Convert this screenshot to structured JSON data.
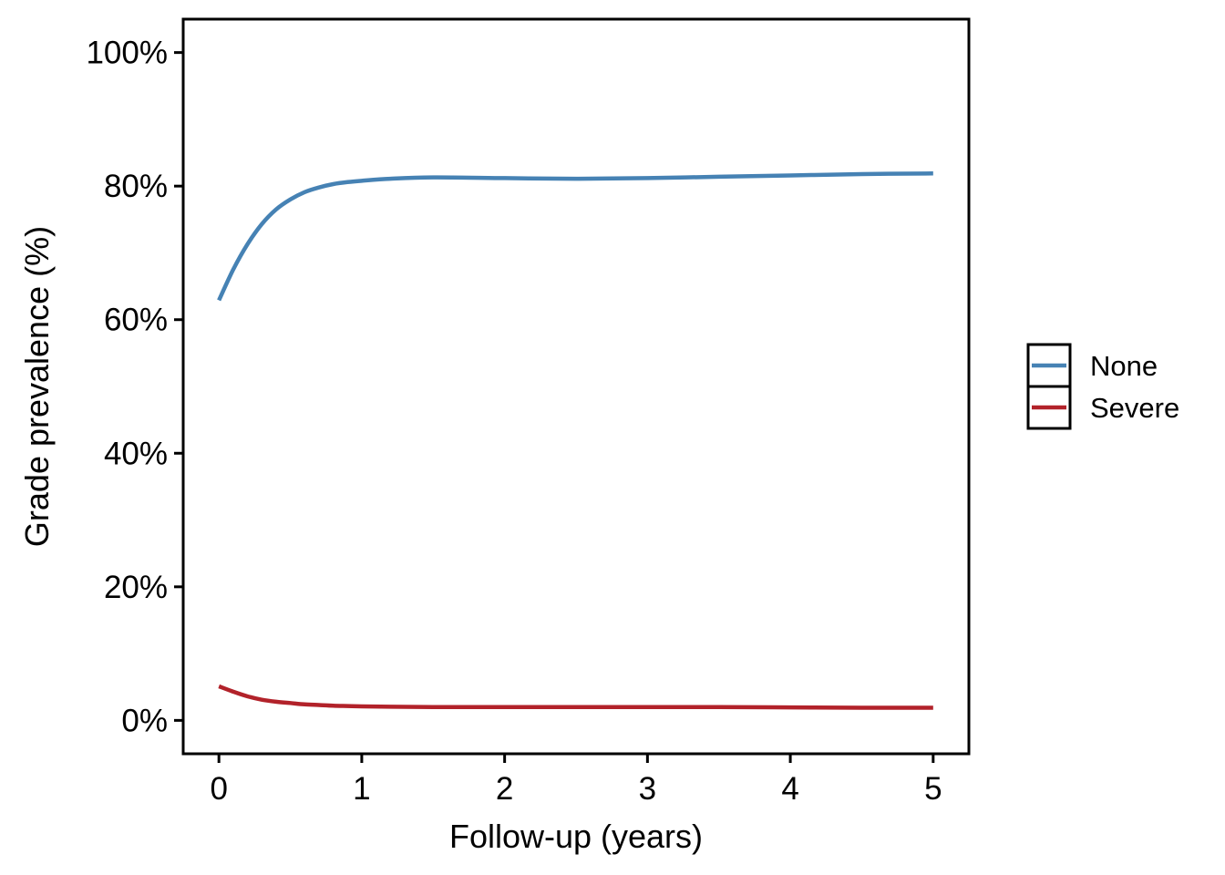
{
  "chart_data": {
    "type": "line",
    "title": "",
    "xlabel": "Follow-up (years)",
    "ylabel": "Grade prevalence (%)",
    "xlim": [
      -0.25,
      5.25
    ],
    "ylim": [
      -5,
      105
    ],
    "x_ticks": [
      0,
      1,
      2,
      3,
      4,
      5
    ],
    "x_tick_labels": [
      "0",
      "1",
      "2",
      "3",
      "4",
      "5"
    ],
    "y_ticks": [
      0,
      20,
      40,
      60,
      80,
      100
    ],
    "y_tick_labels": [
      "0%",
      "20%",
      "40%",
      "60%",
      "80%",
      "100%"
    ],
    "grid": false,
    "legend_position": "right",
    "x": [
      0,
      0.1,
      0.2,
      0.3,
      0.4,
      0.5,
      0.6,
      0.7,
      0.8,
      0.9,
      1.0,
      1.2,
      1.5,
      2.0,
      2.5,
      3.0,
      3.5,
      4.0,
      4.5,
      5.0
    ],
    "series": [
      {
        "name": "None",
        "color": "#4682b4",
        "values": [
          62.9,
          67.5,
          71.3,
          74.3,
          76.5,
          78.0,
          79.1,
          79.8,
          80.3,
          80.6,
          80.8,
          81.1,
          81.3,
          81.2,
          81.1,
          81.2,
          81.4,
          81.6,
          81.8,
          81.9
        ]
      },
      {
        "name": "Severe",
        "color": "#b2222a",
        "values": [
          5.1,
          4.3,
          3.6,
          3.1,
          2.8,
          2.6,
          2.4,
          2.3,
          2.2,
          2.15,
          2.1,
          2.05,
          2.0,
          2.0,
          2.0,
          2.0,
          2.0,
          1.95,
          1.9,
          1.9
        ]
      }
    ]
  }
}
